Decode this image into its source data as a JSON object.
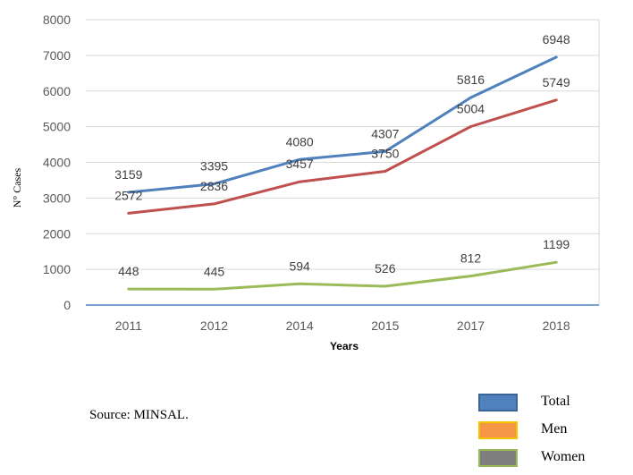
{
  "chart_data": {
    "type": "line",
    "categories": [
      "2011",
      "2012",
      "2014",
      "2015",
      "2017",
      "2018"
    ],
    "series": [
      {
        "name": "Total",
        "color": "#4F81BD",
        "values": [
          3159,
          3395,
          4080,
          4307,
          5816,
          6948
        ]
      },
      {
        "name": "Men",
        "color": "#C0504D",
        "values": [
          2572,
          2836,
          3457,
          3750,
          5004,
          5749
        ]
      },
      {
        "name": "Women",
        "color": "#9BBB59",
        "values": [
          448,
          445,
          594,
          526,
          812,
          1199
        ]
      }
    ],
    "xlabel": "Years",
    "ylabel": "N° Cases",
    "ylim": [
      0,
      8000
    ],
    "yticks": [
      0,
      1000,
      2000,
      3000,
      4000,
      5000,
      6000,
      7000,
      8000
    ],
    "grid": true
  },
  "source_text": "Source: MINSAL.",
  "legend": [
    {
      "label": "Total",
      "fill": "#4F81BD",
      "border": "#3A6496"
    },
    {
      "label": "Men",
      "fill": "#F79646",
      "border": "#F5C400"
    },
    {
      "label": "Women",
      "fill": "#7F7F7F",
      "border": "#9BBB59"
    }
  ]
}
